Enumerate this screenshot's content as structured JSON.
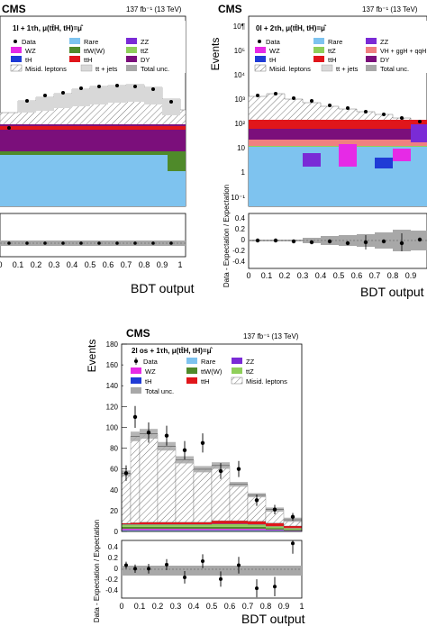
{
  "panels": [
    {
      "id": "left",
      "cms": "CMS",
      "lumi": "137 fb⁻¹ (13 TeV)",
      "channel": "1l + 1τh, μ(tt̄H, tH)=μ̂",
      "legend": [
        "Data",
        "Rare",
        "ZZ",
        "WZ",
        "ttW(W)",
        "ttZ",
        "tH",
        "ttH",
        "DY",
        "Misid. leptons",
        "tt + jets",
        "Total unc."
      ],
      "xaxis_label": "BDT output",
      "ratio_ylabel": "",
      "ratio_ticks": [],
      "x_ticks": [
        "0",
        "0.1",
        "0.2",
        "0.3",
        "0.4",
        "0.5",
        "0.6",
        "0.7",
        "0.8",
        "0.9",
        "1"
      ]
    },
    {
      "id": "right",
      "cms": "CMS",
      "lumi": "137 fb⁻¹ (13 TeV)",
      "channel": "0l + 2τh, μ(tt̄H, tH)=μ̂",
      "ylabel": "Events",
      "y_ticks": [
        "10¶",
        "10⁵",
        "10⁴",
        "10³",
        "10²",
        "10",
        "1",
        "10⁻¹"
      ],
      "legend": [
        "Data",
        "Rare",
        "ZZ",
        "WZ",
        "ttZ",
        "VH + ggH + qqH",
        "tH",
        "ttH",
        "DY",
        "Misid. leptons",
        "tt + jets",
        "Total unc."
      ],
      "xaxis_label": "BDT output",
      "ratio_ylabel": "Data - Expectation / Expectation",
      "ratio_ticks": [
        "0.4",
        "0.2",
        "0",
        "-0.2",
        "-0.4"
      ],
      "x_ticks": [
        "0",
        "0.1",
        "0.2",
        "0.3",
        "0.4",
        "0.5",
        "0.6",
        "0.7",
        "0.8",
        "0.9",
        "1"
      ]
    },
    {
      "id": "bottom",
      "cms": "CMS",
      "lumi": "137 fb⁻¹ (13 TeV)",
      "channel": "2l os + 1τh, μ(tt̄H, tH)=μ̂",
      "ylabel": "Events",
      "y_ticks": [
        "180",
        "160",
        "140",
        "120",
        "100",
        "80",
        "60",
        "40",
        "20",
        "0"
      ],
      "legend": [
        "Data",
        "Rare",
        "ZZ",
        "WZ",
        "ttW(W)",
        "ttZ",
        "tH",
        "ttH",
        "Total unc.",
        "Misid. leptons"
      ],
      "xaxis_label": "BDT output",
      "ratio_ylabel": "Data - Expectation / Expectation",
      "ratio_ticks": [
        "0.4",
        "0.2",
        "0",
        "-0.2",
        "-0.4"
      ],
      "x_ticks": [
        "0",
        "0.1",
        "0.2",
        "0.3",
        "0.4",
        "0.5",
        "0.6",
        "0.7",
        "0.8",
        "0.9",
        "1"
      ]
    }
  ],
  "colors": {
    "rare": "#7ec3ef",
    "zz": "#7a2bd6",
    "wz": "#e62ae6",
    "ttww": "#4f8a2a",
    "ttz": "#8fcf5a",
    "th": "#1f3bd6",
    "tth": "#e0161b",
    "dy": "#7b0f7b",
    "misid": "#ffffff",
    "ttjets": "#d8d8d8",
    "unc": "#a8a8a8",
    "vh": "#f08080"
  },
  "chart_data": [
    {
      "type": "bar",
      "title": "2l os + 1τh, μ(tt̄H, tH)=μ̂",
      "xlabel": "BDT output",
      "ylabel": "Events",
      "xlim": [
        0,
        1
      ],
      "ylim": [
        0,
        180
      ],
      "bin_edges": [
        0.0,
        0.05,
        0.1,
        0.2,
        0.3,
        0.4,
        0.5,
        0.6,
        0.7,
        0.8,
        0.9,
        1.0
      ],
      "series": [
        {
          "name": "Rare",
          "values": [
            1,
            1,
            1,
            1,
            1,
            1,
            1,
            1,
            1,
            1,
            0.5
          ]
        },
        {
          "name": "ZZ",
          "values": [
            0.5,
            0.5,
            0.5,
            0.5,
            0.5,
            0.5,
            0.5,
            0.5,
            0.5,
            0.3,
            0.2
          ]
        },
        {
          "name": "WZ",
          "values": [
            1,
            1,
            1,
            1,
            1,
            1,
            1,
            1,
            1,
            0.5,
            0.3
          ]
        },
        {
          "name": "ttW(W)",
          "values": [
            2,
            2,
            2,
            2,
            2,
            2,
            2,
            2,
            2,
            1.5,
            1
          ]
        },
        {
          "name": "ttZ",
          "values": [
            2,
            2,
            2,
            2,
            2,
            2,
            2.5,
            2.5,
            2,
            1.5,
            1
          ]
        },
        {
          "name": "tH",
          "values": [
            0.3,
            0.3,
            0.3,
            0.3,
            0.3,
            0.3,
            0.3,
            0.3,
            0.3,
            0.2,
            0.2
          ]
        },
        {
          "name": "ttH",
          "values": [
            1,
            1.5,
            2,
            2,
            2,
            2,
            3,
            3,
            3,
            3,
            2
          ]
        },
        {
          "name": "Misid. leptons",
          "values": [
            48,
            83,
            85,
            73,
            60,
            51,
            53,
            35,
            25,
            13,
            6
          ]
        }
      ],
      "data_points": {
        "x": [
          0.025,
          0.075,
          0.15,
          0.25,
          0.35,
          0.45,
          0.55,
          0.65,
          0.75,
          0.85,
          0.95
        ],
        "y": [
          56,
          110,
          95,
          92,
          78,
          85,
          58,
          60,
          30,
          21,
          14
        ]
      },
      "ratio": {
        "ylabel": "Data - Expectation / Expectation",
        "ylim": [
          -0.5,
          0.5
        ],
        "y": [
          0.07,
          0.01,
          0.01,
          0.08,
          -0.14,
          0.14,
          -0.17,
          0.07,
          -0.33,
          -0.3,
          0.45
        ]
      }
    }
  ]
}
